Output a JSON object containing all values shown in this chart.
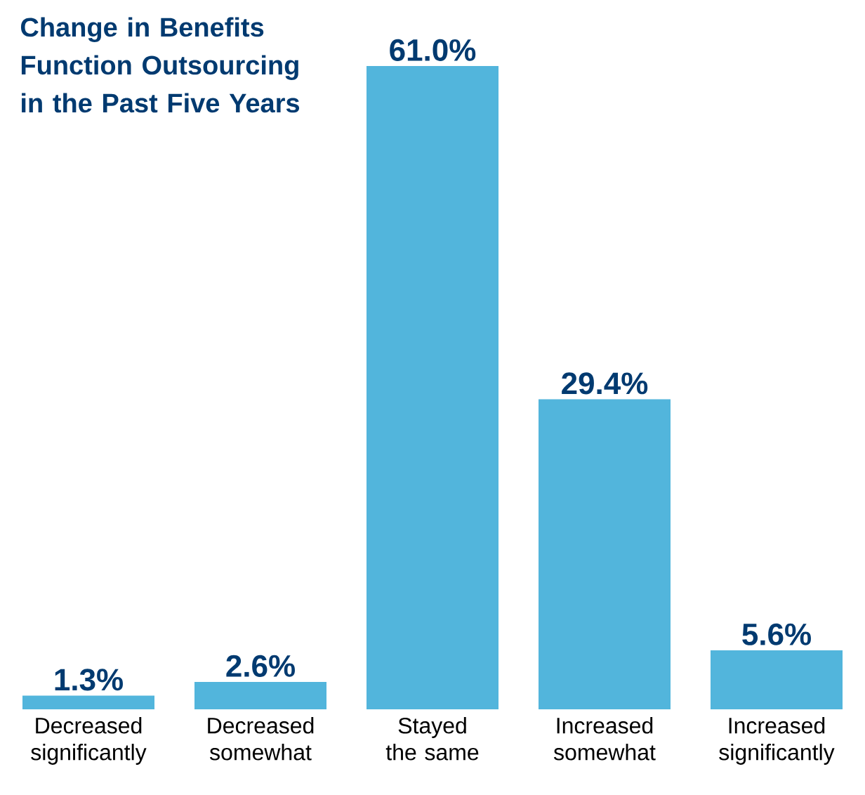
{
  "chart_data": {
    "type": "bar",
    "title": "Change in Benefits Function Outsourcing in the Past Five Years",
    "categories": [
      "Decreased significantly",
      "Decreased somewhat",
      "Stayed the same",
      "Increased somewhat",
      "Increased significantly"
    ],
    "values": [
      1.3,
      2.6,
      61.0,
      29.4,
      5.6
    ],
    "value_labels": [
      "1.3%",
      "2.6%",
      "61.0%",
      "29.4%",
      "5.6%"
    ],
    "color": "#52b5dc"
  }
}
